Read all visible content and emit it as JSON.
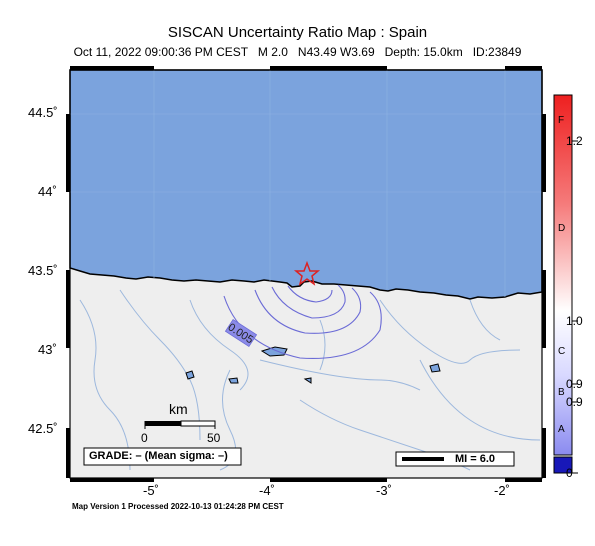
{
  "title": "SISCAN Uncertainty Ratio Map : Spain",
  "subtitle": "Oct 11, 2022 09:00:36 PM CEST   M 2.0   N43.49 W3.69   Depth: 15.0km   ID:23849",
  "footer": "Map Version 1 Processed 2022-10-13 01:24:28 PM CEST",
  "colors": {
    "sea": "#7ba3dd",
    "land": "#eeeeee",
    "rivers": "#9db8dd",
    "contours": "#6b6bd6",
    "epicenter": "#dd2222"
  },
  "map": {
    "lat_ticks": [
      "44.5˚",
      "44˚",
      "43.5˚",
      "43˚",
      "42.5˚"
    ],
    "lon_ticks": [
      "-5˚",
      "-4˚",
      "-3˚",
      "-2˚"
    ],
    "contour_label": "0.005",
    "scale_bar": {
      "unit": "km",
      "ticks": [
        "0",
        "50"
      ]
    },
    "grade_box": "GRADE: – (Mean sigma: –)",
    "mi_legend": "MI = 6.0"
  },
  "colorbar": {
    "value_labels": [
      "1.2",
      "1.0",
      "0.9",
      "0.9",
      "0"
    ],
    "grade_labels": [
      "F",
      "D",
      "C",
      "B",
      "A"
    ]
  }
}
